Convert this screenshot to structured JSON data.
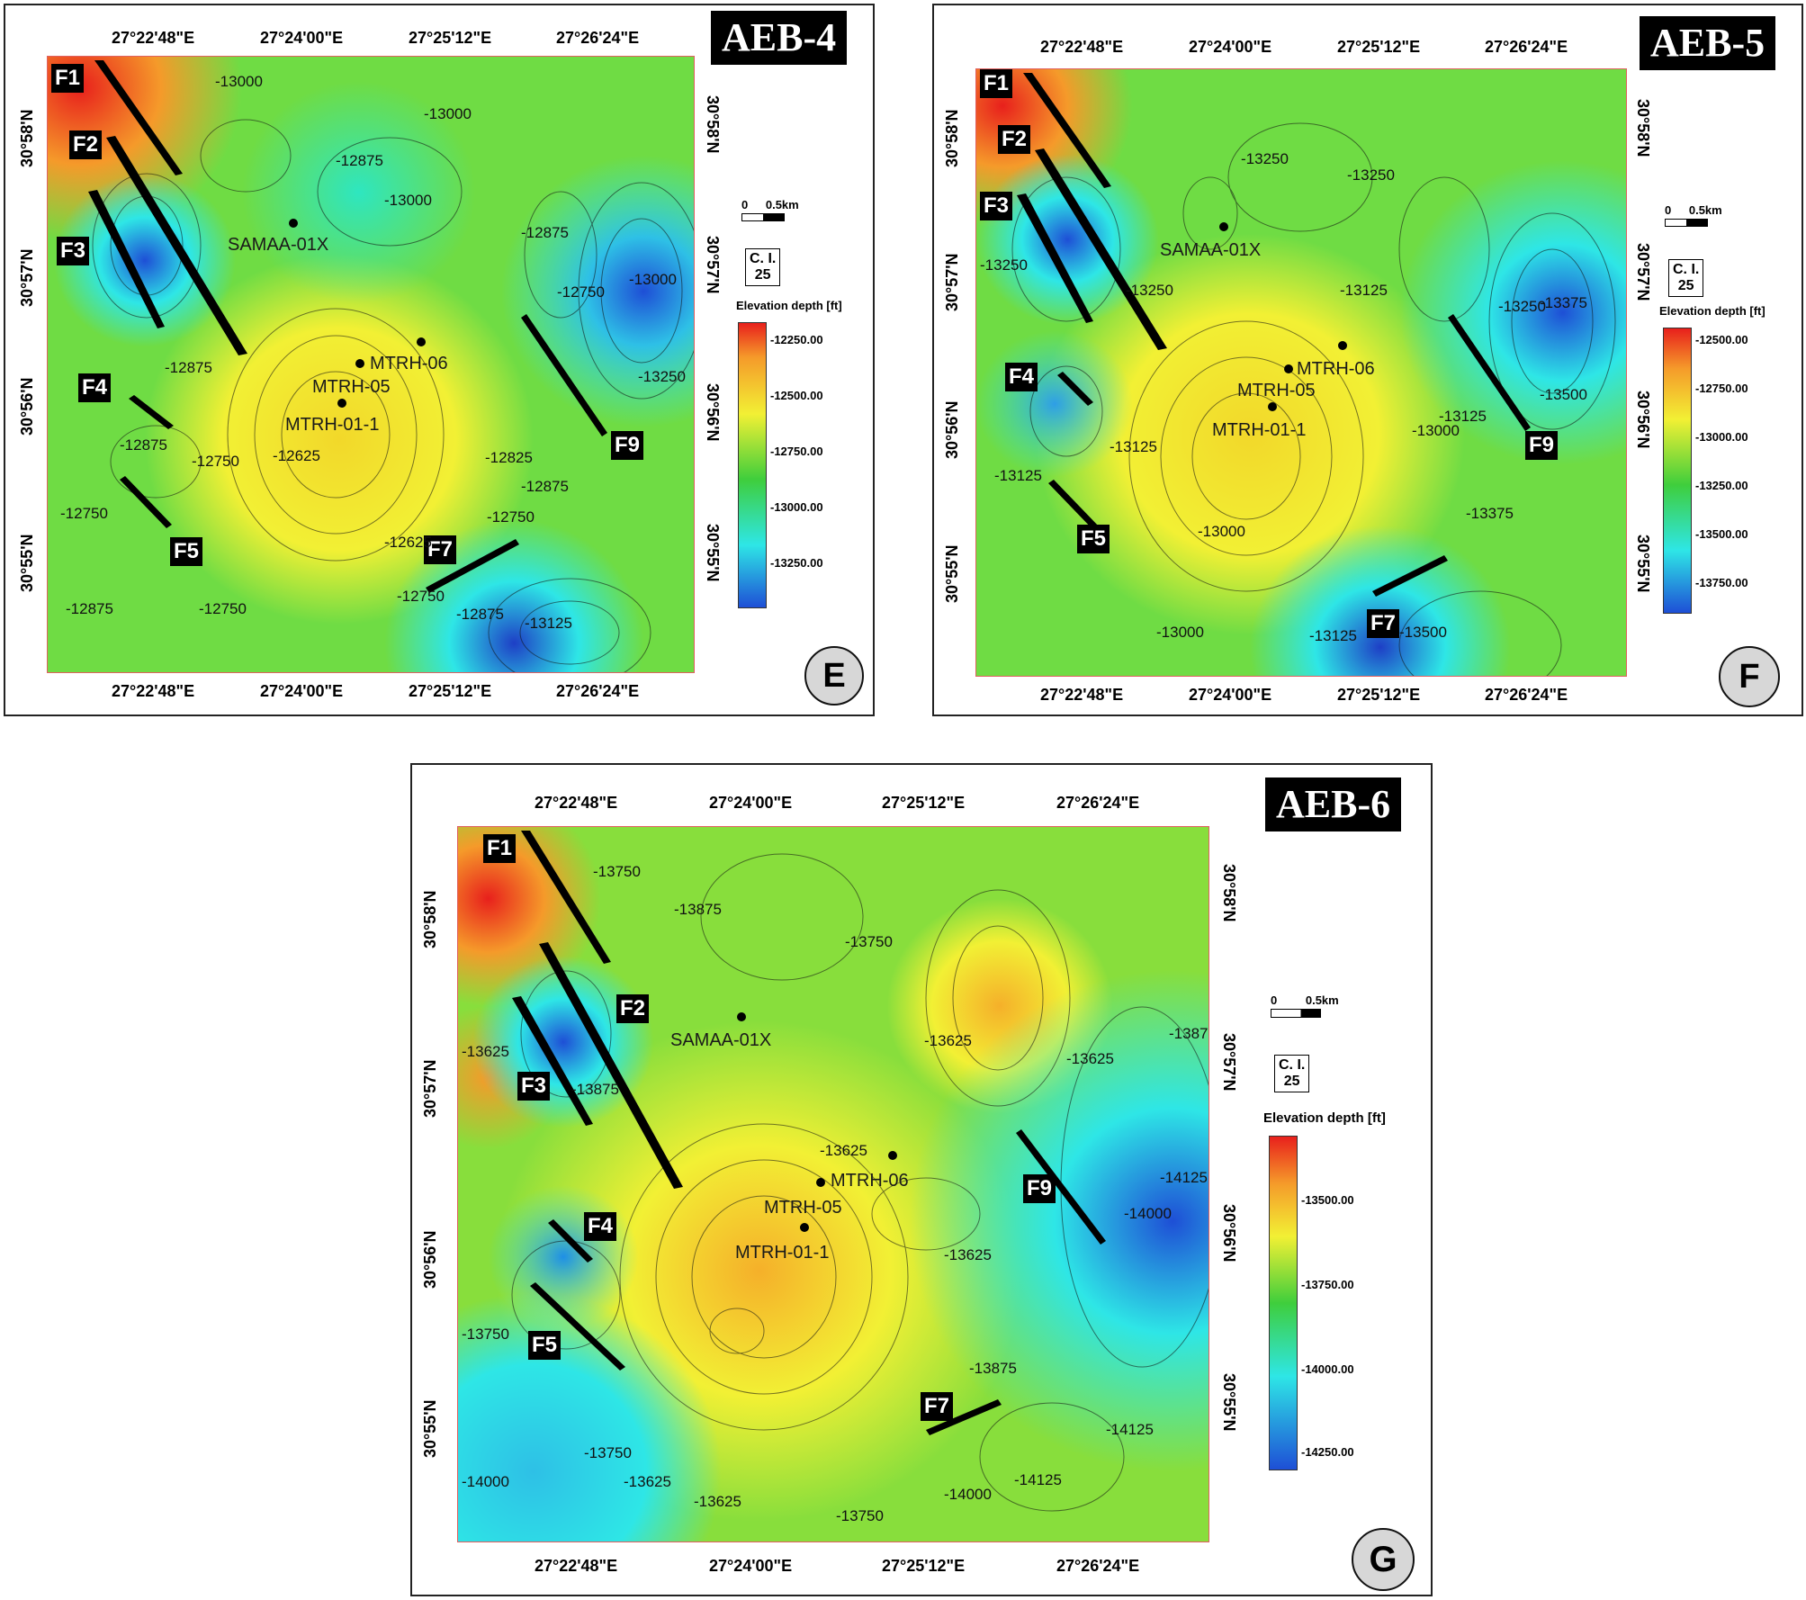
{
  "panels": [
    {
      "id": "E",
      "title": "AEB-4",
      "panel_letter": "E",
      "lon_ticks": [
        "27°22'48\"E",
        "27°24'00\"E",
        "27°25'12\"E",
        "27°26'24\"E"
      ],
      "lat_ticks": [
        "30°58'N",
        "30°57'N",
        "30°56'N",
        "30°55'N"
      ],
      "scale": {
        "zero": "0",
        "dist": "0.5km"
      },
      "ci": {
        "line1": "C. I.",
        "line2": "25"
      },
      "legend_title": "Elevation depth [ft]",
      "legend_ticks": [
        "-12250.00",
        "-12500.00",
        "-12750.00",
        "-13000.00",
        "-13250.00"
      ],
      "faults": [
        "F1",
        "F2",
        "F3",
        "F4",
        "F5",
        "F7",
        "F9"
      ],
      "wells": [
        "SAMAA-01X",
        "MTRH-06",
        "MTRH-05",
        "MTRH-01-1"
      ],
      "contour_labels": [
        "-13000",
        "-13000",
        "-12875",
        "-13000",
        "-12875",
        "-12875",
        "-12750",
        "-13000",
        "-12750",
        "-13250",
        "-12875",
        "-12875",
        "-12750",
        "-12625",
        "-12750",
        "-12625",
        "-12825",
        "-12750",
        "-12625",
        "-12875",
        "-12750",
        "-12875",
        "-12750",
        "-12875",
        "-13000",
        "-13125",
        "-12750"
      ]
    },
    {
      "id": "F",
      "title": "AEB-5",
      "panel_letter": "F",
      "lon_ticks": [
        "27°22'48\"E",
        "27°24'00\"E",
        "27°25'12\"E",
        "27°26'24\"E"
      ],
      "lat_ticks": [
        "30°58'N",
        "30°57'N",
        "30°56'N",
        "30°55'N"
      ],
      "scale": {
        "zero": "0",
        "dist": "0.5km"
      },
      "ci": {
        "line1": "C. I.",
        "line2": "25"
      },
      "legend_title": "Elevation depth [ft]",
      "legend_ticks": [
        "-12500.00",
        "-12750.00",
        "-13000.00",
        "-13250.00",
        "-13500.00",
        "-13750.00"
      ],
      "faults": [
        "F1",
        "F2",
        "F3",
        "F4",
        "F5",
        "F7",
        "F9"
      ],
      "wells": [
        "SAMAA-01X",
        "MTRH-06",
        "MTRH-05",
        "MTRH-01-1"
      ],
      "contour_labels": [
        "-13250",
        "-13250",
        "-13250",
        "-13250",
        "-13125",
        "-13250",
        "-13375",
        "-13500",
        "-13125",
        "-13250",
        "-13125",
        "-13125",
        "-13000",
        "-13125",
        "-13000",
        "-13125",
        "-13375",
        "-13000",
        "-13125",
        "-13500"
      ]
    },
    {
      "id": "G",
      "title": "AEB-6",
      "panel_letter": "G",
      "lon_ticks": [
        "27°22'48\"E",
        "27°24'00\"E",
        "27°25'12\"E",
        "27°26'24\"E"
      ],
      "lat_ticks": [
        "30°58'N",
        "30°57'N",
        "30°56'N",
        "30°55'N"
      ],
      "scale": {
        "zero": "0",
        "dist": "0.5km"
      },
      "ci": {
        "line1": "C. I.",
        "line2": "25"
      },
      "legend_title": "Elevation depth [ft]",
      "legend_ticks": [
        "-13500.00",
        "-13750.00",
        "-14000.00",
        "-14250.00"
      ],
      "faults": [
        "F1",
        "F2",
        "F3",
        "F4",
        "F5",
        "F7",
        "F9"
      ],
      "wells": [
        "SAMAA-01X",
        "MTRH-06",
        "MTRH-05",
        "MTRH-01-1"
      ],
      "contour_labels": [
        "-13750",
        "-13875",
        "-13750",
        "-13625",
        "-13625",
        "-13875",
        "-13625",
        "-13625",
        "-13625",
        "-13875",
        "-14125",
        "-14000",
        "-13625",
        "-13625",
        "-13875",
        "-14000",
        "-14125",
        "-14125",
        "-14000",
        "-13750",
        "-13625",
        "-13625",
        "-13750",
        "-14000",
        "-13750"
      ]
    }
  ],
  "colors": {
    "red": "#e8201c",
    "orange": "#f59a2a",
    "yellow": "#f2f034",
    "green": "#3fce3c",
    "cyan": "#2ee6e6",
    "blue": "#1e4fd6",
    "arrow": "#e8201c"
  }
}
